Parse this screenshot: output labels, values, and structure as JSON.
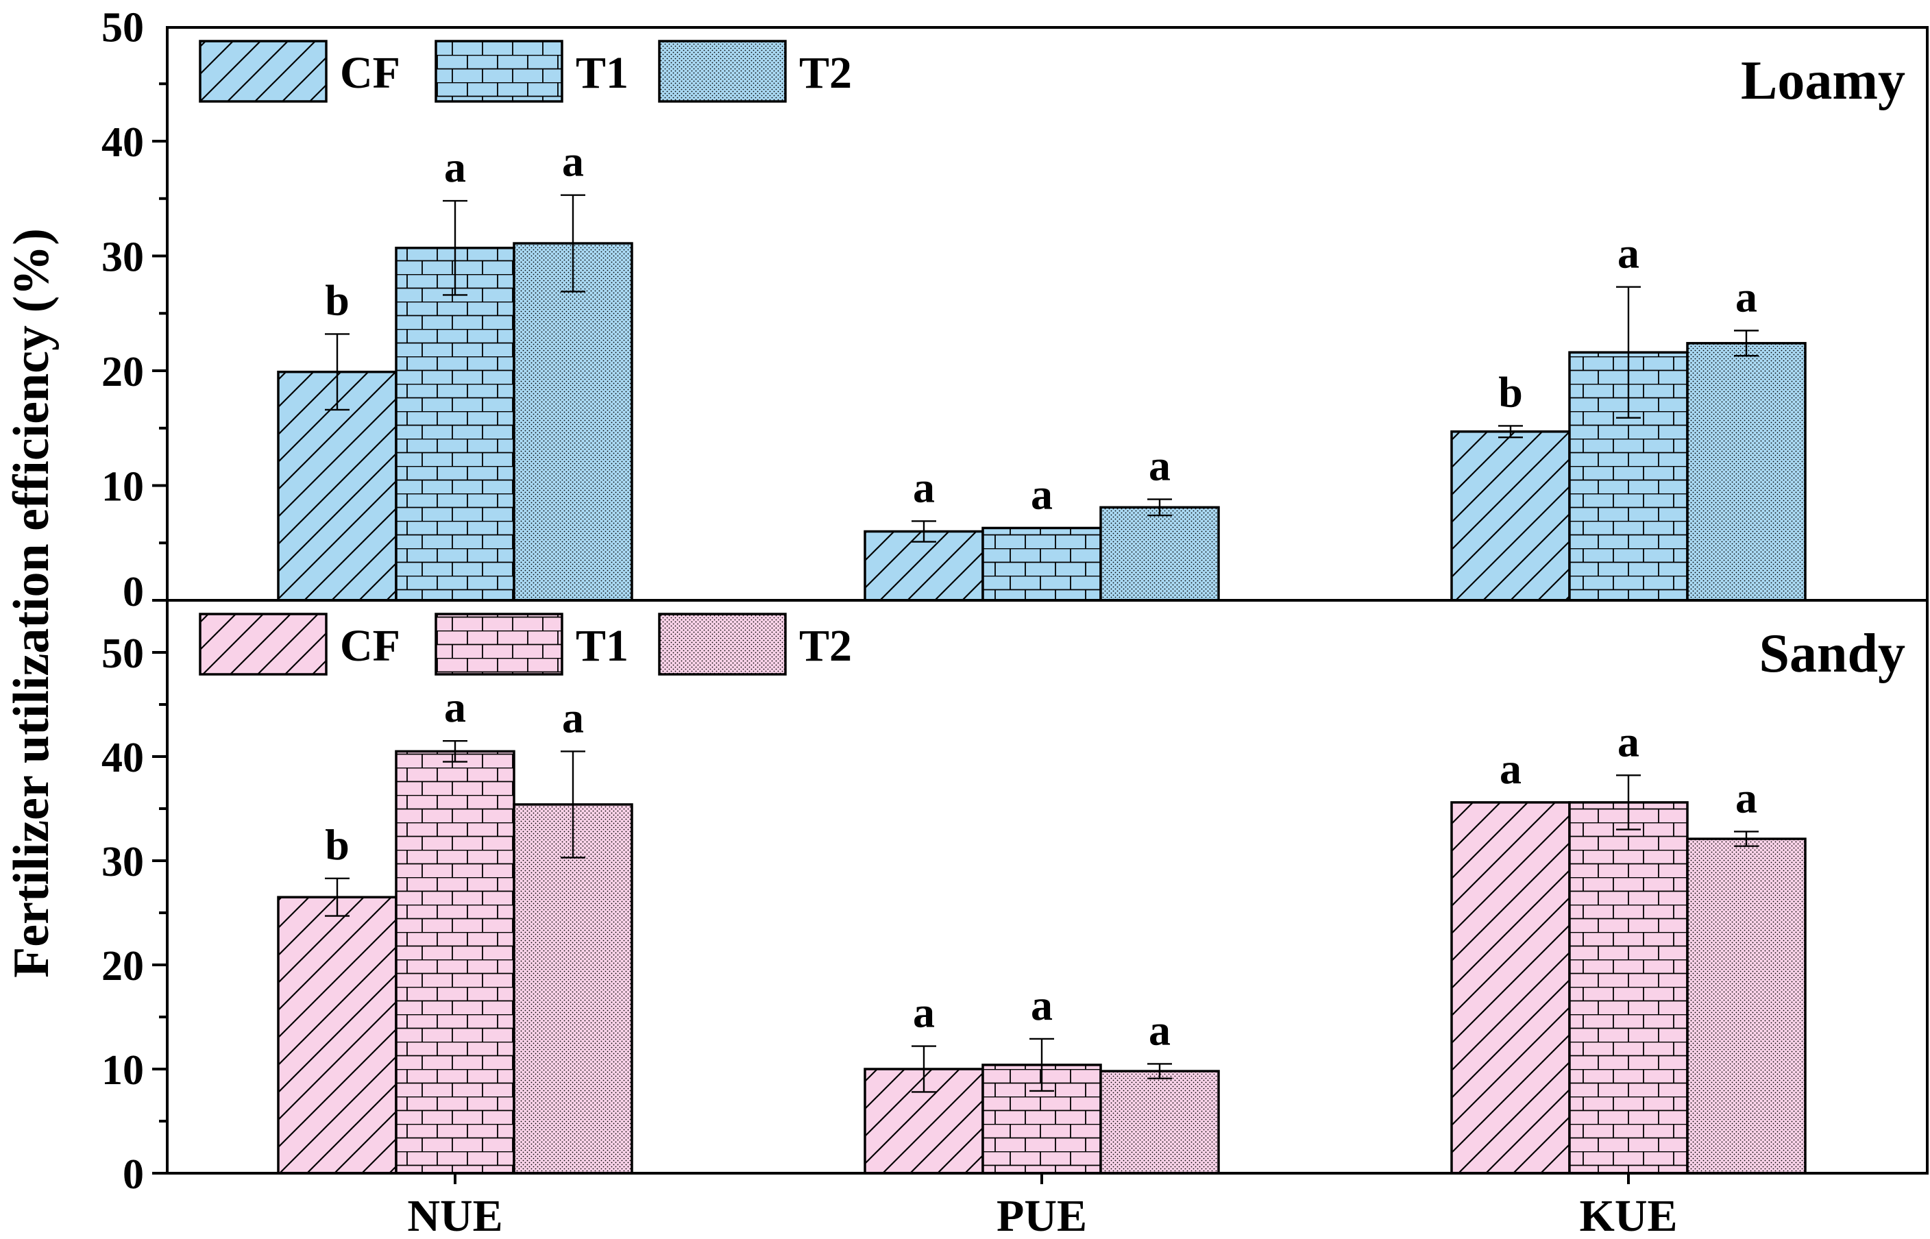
{
  "chart_data": {
    "type": "bar",
    "ylabel": "Fertilizer utilization efficiency (%)",
    "xlabel": "",
    "categories": [
      "NUE",
      "PUE",
      "KUE"
    ],
    "legend": [
      "CF",
      "T1",
      "T2"
    ],
    "legend_position": "top-left",
    "colors": {
      "loamy_fill": "#a9d8f2",
      "sandy_fill": "#f9d2e8",
      "ink": "#000000"
    },
    "panels": [
      {
        "title": "Loamy",
        "ylim": [
          0,
          50
        ],
        "yticks": [
          0,
          10,
          20,
          30,
          40,
          50
        ],
        "series": [
          {
            "name": "CF",
            "pattern": "diagonal-hatch",
            "values": [
              19.9,
              6.0,
              14.7
            ],
            "errors": [
              3.3,
              0.9,
              0.5
            ],
            "letters": [
              "b",
              "a",
              "b"
            ]
          },
          {
            "name": "T1",
            "pattern": "brick",
            "values": [
              30.7,
              6.3,
              21.6
            ],
            "errors": [
              4.1,
              0.0,
              5.7
            ],
            "letters": [
              "a",
              "a",
              "a"
            ]
          },
          {
            "name": "T2",
            "pattern": "dots",
            "values": [
              31.1,
              8.1,
              22.4
            ],
            "errors": [
              4.2,
              0.7,
              1.1
            ],
            "letters": [
              "a",
              "a",
              "a"
            ]
          }
        ]
      },
      {
        "title": "Sandy",
        "ylim": [
          0,
          55
        ],
        "yticks": [
          0,
          10,
          20,
          30,
          40,
          50
        ],
        "series": [
          {
            "name": "CF",
            "pattern": "diagonal-hatch",
            "values": [
              26.5,
              10.0,
              35.6
            ],
            "errors": [
              1.8,
              2.2,
              0.0
            ],
            "letters": [
              "b",
              "a",
              "a"
            ]
          },
          {
            "name": "T1",
            "pattern": "brick",
            "values": [
              40.5,
              10.4,
              35.6
            ],
            "errors": [
              1.0,
              2.5,
              2.6
            ],
            "letters": [
              "a",
              "a",
              "a"
            ]
          },
          {
            "name": "T2",
            "pattern": "dots",
            "values": [
              35.4,
              9.8,
              32.1
            ],
            "errors": [
              5.1,
              0.7,
              0.7
            ],
            "letters": [
              "a",
              "a",
              "a"
            ]
          }
        ]
      }
    ]
  }
}
